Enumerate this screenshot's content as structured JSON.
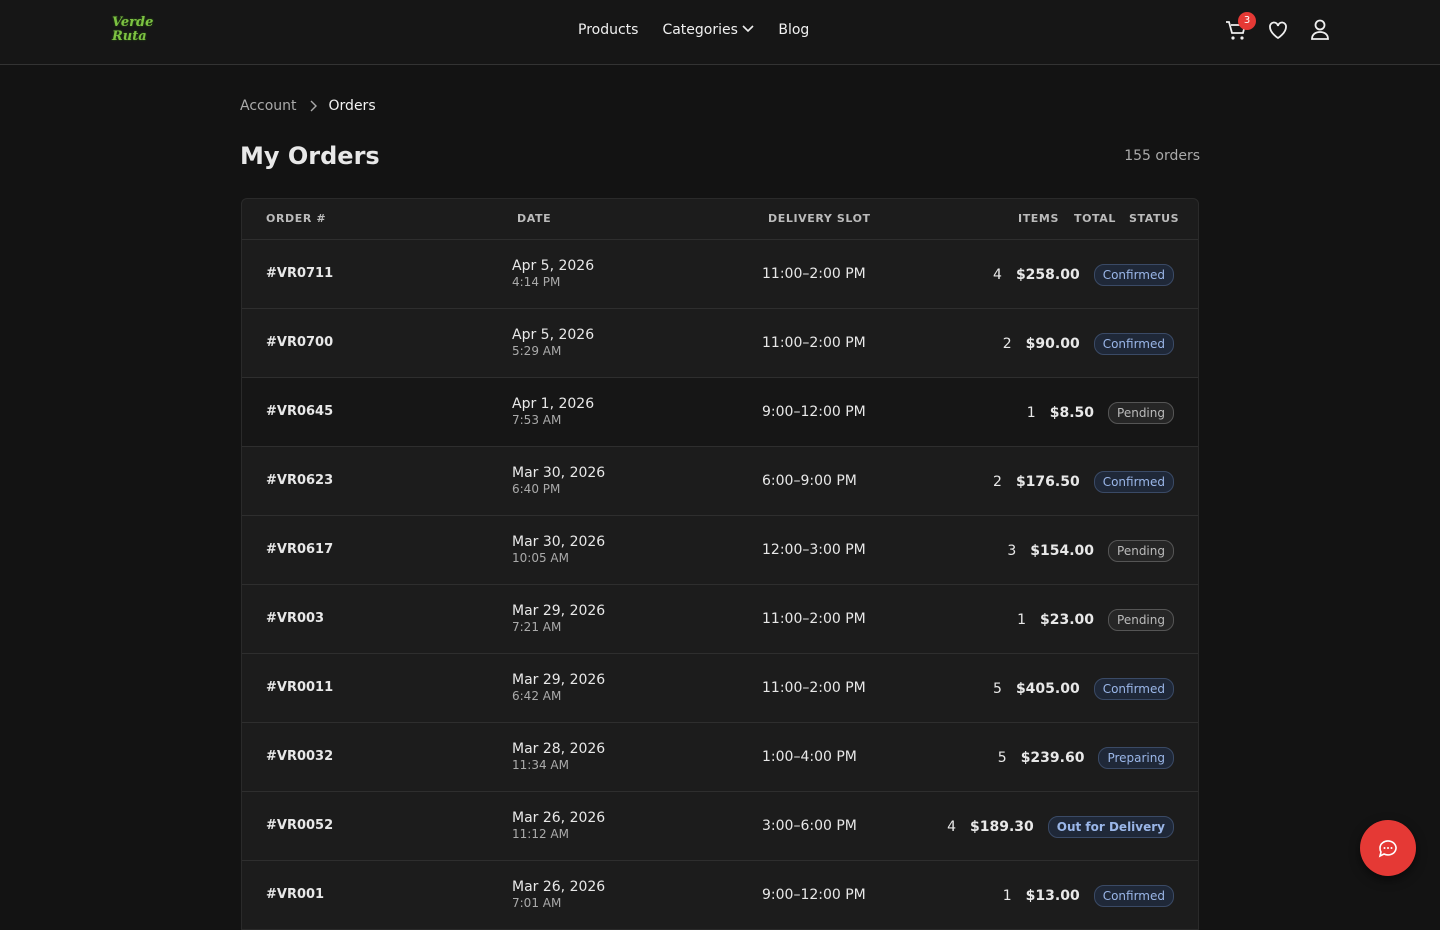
{
  "header": {
    "logo": "Verde Ruta",
    "nav": [
      "Products",
      "Categories",
      "Blog"
    ],
    "cart_count": 3
  },
  "breadcrumb": [
    "Account",
    "Orders"
  ],
  "title": "My Orders",
  "order_count": "155 orders",
  "table": {
    "columns": [
      "ORDER #",
      "DATE",
      "DELIVERY SLOT",
      "ITEMS",
      "TOTAL",
      "STATUS"
    ],
    "rows": [
      {
        "order": "#VR0711",
        "date": "Apr 5, 2026",
        "time": "4:14 PM",
        "slot": "11:00–2:00 PM",
        "items": 4,
        "total": "$258.00",
        "status": "Confirmed"
      },
      {
        "order": "#VR0700",
        "date": "Apr 5, 2026",
        "time": "5:29 AM",
        "slot": "11:00–2:00 PM",
        "items": 2,
        "total": "$90.00",
        "status": "Confirmed"
      },
      {
        "order": "#VR0645",
        "date": "Apr 1, 2026",
        "time": "7:53 AM",
        "slot": "9:00–12:00 PM",
        "items": 1,
        "total": "$8.50",
        "status": "Pending"
      },
      {
        "order": "#VR0623",
        "date": "Mar 30, 2026",
        "time": "6:40 PM",
        "slot": "6:00–9:00 PM",
        "items": 2,
        "total": "$176.50",
        "status": "Confirmed"
      },
      {
        "order": "#VR0617",
        "date": "Mar 30, 2026",
        "time": "10:05 AM",
        "slot": "12:00–3:00 PM",
        "items": 3,
        "total": "$154.00",
        "status": "Pending"
      },
      {
        "order": "#VR003",
        "date": "Mar 29, 2026",
        "time": "7:21 AM",
        "slot": "11:00–2:00 PM",
        "items": 1,
        "total": "$23.00",
        "status": "Pending"
      },
      {
        "order": "#VR0011",
        "date": "Mar 29, 2026",
        "time": "6:42 AM",
        "slot": "11:00–2:00 PM",
        "items": 5,
        "total": "$405.00",
        "status": "Confirmed"
      },
      {
        "order": "#VR0032",
        "date": "Mar 28, 2026",
        "time": "11:34 AM",
        "slot": "1:00–4:00 PM",
        "items": 5,
        "total": "$239.60",
        "status": "Preparing"
      },
      {
        "order": "#VR0052",
        "date": "Mar 26, 2026",
        "time": "11:12 AM",
        "slot": "3:00–6:00 PM",
        "items": 4,
        "total": "$189.30",
        "status": "Out for Delivery"
      },
      {
        "order": "#VR001",
        "date": "Mar 26, 2026",
        "time": "7:01 AM",
        "slot": "9:00–12:00 PM",
        "items": 1,
        "total": "$13.00",
        "status": "Confirmed"
      }
    ]
  }
}
